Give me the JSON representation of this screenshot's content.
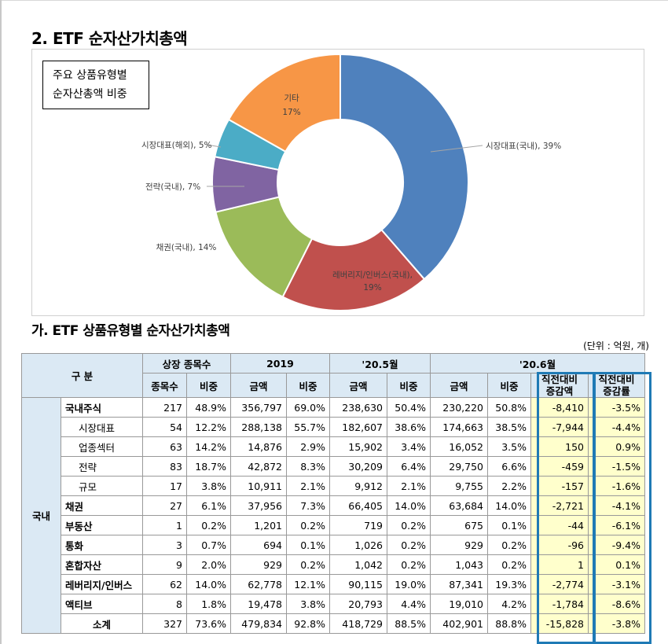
{
  "section_title": "2. ETF 순자산가치총액",
  "chart_box_title_line1": "주요 상품유형별",
  "chart_box_title_line2": "순자산총액 비중",
  "chart_data": {
    "type": "pie",
    "donut": true,
    "slices": [
      {
        "label": "시장대표(국내)",
        "value": 39,
        "display": "시장대표(국내), 39%",
        "color": "#4f81bd"
      },
      {
        "label": "레버리지/인버스(국내)",
        "value": 19,
        "display_line1": "레버리지/인버스(국내),",
        "display_line2": "19%",
        "color": "#c0504d"
      },
      {
        "label": "채권(국내)",
        "value": 14,
        "display": "채권(국내), 14%",
        "color": "#9bbb59"
      },
      {
        "label": "전략(국내)",
        "value": 7,
        "display": "전략(국내), 7%",
        "color": "#8064a2"
      },
      {
        "label": "시장대표(해외)",
        "value": 5,
        "display": "시장대표(해외), 5%",
        "color": "#4bacc6"
      },
      {
        "label": "기타",
        "value": 17,
        "display_line1": "기타",
        "display_line2": "17%",
        "color": "#f79646"
      }
    ]
  },
  "table_title": "가. ETF 상품유형별 순자산가치총액",
  "unit_note": "(단위 : 억원, 개)",
  "table": {
    "h_category": "구 분",
    "h_listed": "상장 종목수",
    "h_2019": "2019",
    "h_may": "'20.5월",
    "h_jun": "'20.6월",
    "h_count": "종목수",
    "h_ratio": "비중",
    "h_amount": "금액",
    "h_change_amt_1": "직전대비",
    "h_change_amt_2": "증감액",
    "h_change_rate_1": "직전대비",
    "h_change_rate_2": "증감률",
    "group_domestic": "국내",
    "rows": [
      {
        "label": "국내주식",
        "bold": true,
        "sub": false,
        "cells": [
          "217",
          "48.9%",
          "356,797",
          "69.0%",
          "238,630",
          "50.4%",
          "230,220",
          "50.8%",
          "-8,410",
          "-3.5%"
        ]
      },
      {
        "label": "시장대표",
        "bold": false,
        "sub": true,
        "cells": [
          "54",
          "12.2%",
          "288,138",
          "55.7%",
          "182,607",
          "38.6%",
          "174,663",
          "38.5%",
          "-7,944",
          "-4.4%"
        ]
      },
      {
        "label": "업종섹터",
        "bold": false,
        "sub": true,
        "cells": [
          "63",
          "14.2%",
          "14,876",
          "2.9%",
          "15,902",
          "3.4%",
          "16,052",
          "3.5%",
          "150",
          "0.9%"
        ]
      },
      {
        "label": "전략",
        "bold": false,
        "sub": true,
        "cells": [
          "83",
          "18.7%",
          "42,872",
          "8.3%",
          "30,209",
          "6.4%",
          "29,750",
          "6.6%",
          "-459",
          "-1.5%"
        ]
      },
      {
        "label": "규모",
        "bold": false,
        "sub": true,
        "cells": [
          "17",
          "3.8%",
          "10,911",
          "2.1%",
          "9,912",
          "2.1%",
          "9,755",
          "2.2%",
          "-157",
          "-1.6%"
        ]
      },
      {
        "label": "채권",
        "bold": true,
        "sub": false,
        "cells": [
          "27",
          "6.1%",
          "37,956",
          "7.3%",
          "66,405",
          "14.0%",
          "63,684",
          "14.0%",
          "-2,721",
          "-4.1%"
        ]
      },
      {
        "label": "부동산",
        "bold": true,
        "sub": false,
        "cells": [
          "1",
          "0.2%",
          "1,201",
          "0.2%",
          "719",
          "0.2%",
          "675",
          "0.1%",
          "-44",
          "-6.1%"
        ]
      },
      {
        "label": "통화",
        "bold": true,
        "sub": false,
        "cells": [
          "3",
          "0.7%",
          "694",
          "0.1%",
          "1,026",
          "0.2%",
          "929",
          "0.2%",
          "-96",
          "-9.4%"
        ]
      },
      {
        "label": "혼합자산",
        "bold": true,
        "sub": false,
        "cells": [
          "9",
          "2.0%",
          "929",
          "0.2%",
          "1,042",
          "0.2%",
          "1,043",
          "0.2%",
          "1",
          "0.1%"
        ]
      },
      {
        "label": "레버리지/인버스",
        "bold": true,
        "sub": false,
        "cells": [
          "62",
          "14.0%",
          "62,778",
          "12.1%",
          "90,115",
          "19.0%",
          "87,341",
          "19.3%",
          "-2,774",
          "-3.1%"
        ]
      },
      {
        "label": "액티브",
        "bold": true,
        "sub": false,
        "cells": [
          "8",
          "1.8%",
          "19,478",
          "3.8%",
          "20,793",
          "4.4%",
          "19,010",
          "4.2%",
          "-1,784",
          "-8.6%"
        ]
      },
      {
        "label": "소계",
        "bold": true,
        "sub": false,
        "center": true,
        "cells": [
          "327",
          "73.6%",
          "479,834",
          "92.8%",
          "418,729",
          "88.5%",
          "402,901",
          "88.8%",
          "-15,828",
          "-3.8%"
        ]
      }
    ]
  }
}
